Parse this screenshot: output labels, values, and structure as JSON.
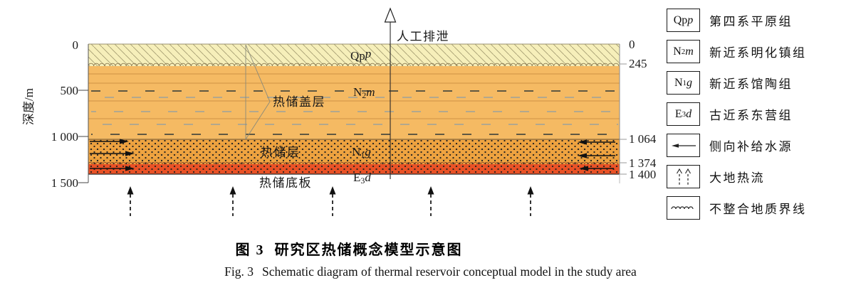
{
  "figure": {
    "caption_zh_no": "图 3",
    "caption_zh": "研究区热储概念模型示意图",
    "caption_en_no": "Fig. 3",
    "caption_en": "Schematic diagram of thermal reservoir conceptual model in the study area"
  },
  "axes": {
    "depth_label": "深度/m",
    "left_ticks": [
      "0",
      "500",
      "1 000",
      "1 500"
    ],
    "right_ticks": [
      "0",
      "245",
      "1 064",
      "1 374",
      "1 400"
    ]
  },
  "labels": {
    "discharge": "人工排泄",
    "caprock": "热储盖层",
    "reservoir": "热储层",
    "basement": "热储底板"
  },
  "strata": {
    "qpp": {
      "base": "Qp",
      "sub": "",
      "it": "p",
      "name": "第四系平原组",
      "color": "#f6efba"
    },
    "n2m": {
      "base": "N",
      "sub": "2",
      "it": "m",
      "name": "新近系明化镇组",
      "color": "#f5ba63"
    },
    "n1g": {
      "base": "N",
      "sub": "1",
      "it": "g",
      "name": "新近系馆陶组",
      "color": "#efa441"
    },
    "e3d": {
      "base": "E",
      "sub": "3",
      "it": "d",
      "name": "古近系东营组",
      "color": "#ea5226"
    }
  },
  "legend": {
    "recharge": "侧向补给水源",
    "recharge_icon": "left-arrow-icon",
    "heatflow": "大地热流",
    "heatflow_icon": "dashed-up-arrows-icon",
    "unconformity": "不整合地质界线",
    "unconformity_icon": "wavy-line-icon"
  },
  "boundaries_m": {
    "qpp_n2m": 245,
    "n2m_n1g": 1064,
    "n1g_e3d": 1374,
    "base": 1400,
    "axis_max": 1500
  }
}
